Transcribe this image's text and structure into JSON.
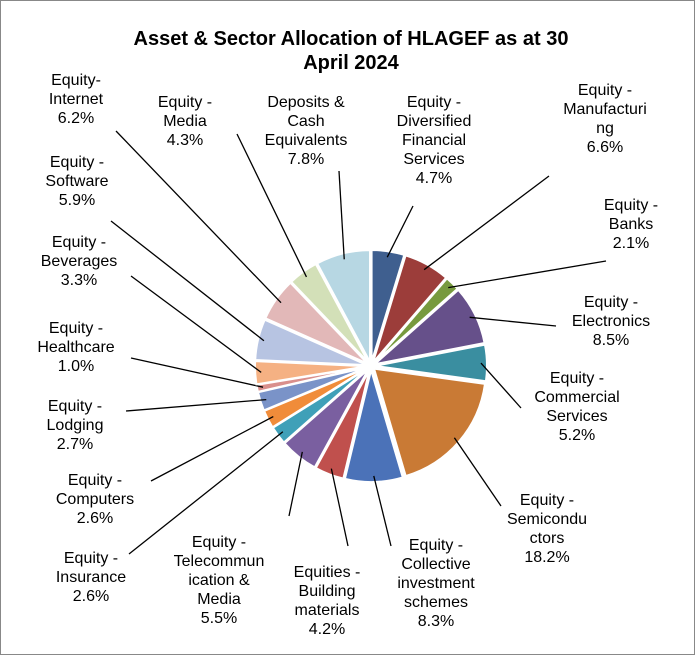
{
  "chart_data": {
    "type": "pie",
    "title": "Asset & Sector Allocation of HLAGEF as at 30 April 2024",
    "categories": [
      "Equity - Diversified Financial Services",
      "Equity - Manufacturing",
      "Equity - Banks",
      "Equity - Electronics",
      "Equity - Commercial Services",
      "Equity - Semiconductors",
      "Equity - Collective investment schemes",
      "Equities - Building materials",
      "Equity - Telecommunication & Media",
      "Equity - Insurance",
      "Equity - Computers",
      "Equity - Lodging",
      "Equity - Healthcare",
      "Equity - Beverages",
      "Equity - Software",
      "Equity- Internet",
      "Equity - Media",
      "Deposits & Cash Equivalents"
    ],
    "values": [
      4.7,
      6.6,
      2.1,
      8.5,
      5.2,
      18.2,
      8.3,
      4.2,
      5.5,
      2.6,
      2.6,
      2.7,
      1.0,
      3.3,
      5.9,
      6.2,
      4.3,
      7.8
    ],
    "value_labels": [
      "4.7%",
      "6.6%",
      "2.1%",
      "8.5%",
      "5.2%",
      "18.2%",
      "8.3%",
      "4.2%",
      "5.5%",
      "2.6%",
      "2.6%",
      "2.7%",
      "1.0%",
      "3.3%",
      "5.9%",
      "6.2%",
      "4.3%",
      "7.8%"
    ],
    "colors": [
      "#3f5f8f",
      "#9c3d3a",
      "#779a3e",
      "#66508a",
      "#3a8ea0",
      "#c97a35",
      "#4b72b8",
      "#c0504d",
      "#7a5fa0",
      "#3fa0b8",
      "#f08c3a",
      "#7a93c8",
      "#d98f8c",
      "#f5b183",
      "#b7c4e2",
      "#e2b8b8",
      "#d3e0b8",
      "#b7d7e3"
    ]
  }
}
